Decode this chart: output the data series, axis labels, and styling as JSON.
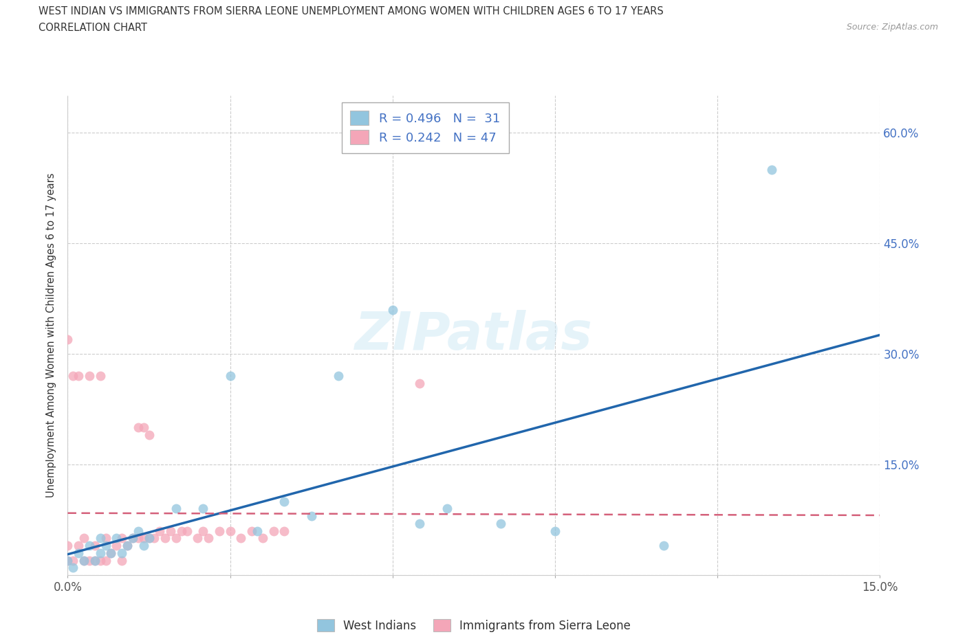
{
  "title_line1": "WEST INDIAN VS IMMIGRANTS FROM SIERRA LEONE UNEMPLOYMENT AMONG WOMEN WITH CHILDREN AGES 6 TO 17 YEARS",
  "title_line2": "CORRELATION CHART",
  "source_text": "Source: ZipAtlas.com",
  "ylabel": "Unemployment Among Women with Children Ages 6 to 17 years",
  "xlim": [
    0.0,
    0.15
  ],
  "ylim": [
    0.0,
    0.65
  ],
  "color_blue": "#92c5de",
  "color_pink": "#f4a6b8",
  "trendline_blue": "#2166ac",
  "trendline_pink": "#d4607a",
  "label_blue": "West Indians",
  "label_pink": "Immigrants from Sierra Leone",
  "R1": "0.496",
  "N1": "31",
  "R2": "0.242",
  "N2": "47",
  "wi_x": [
    0.0,
    0.001,
    0.002,
    0.003,
    0.004,
    0.005,
    0.006,
    0.006,
    0.007,
    0.008,
    0.009,
    0.01,
    0.011,
    0.012,
    0.013,
    0.014,
    0.015,
    0.02,
    0.025,
    0.03,
    0.035,
    0.04,
    0.045,
    0.05,
    0.06,
    0.065,
    0.07,
    0.08,
    0.09,
    0.11,
    0.13
  ],
  "wi_y": [
    0.02,
    0.01,
    0.03,
    0.02,
    0.04,
    0.02,
    0.03,
    0.05,
    0.04,
    0.03,
    0.05,
    0.03,
    0.04,
    0.05,
    0.06,
    0.04,
    0.05,
    0.09,
    0.09,
    0.27,
    0.06,
    0.1,
    0.08,
    0.27,
    0.36,
    0.07,
    0.09,
    0.07,
    0.06,
    0.04,
    0.55
  ],
  "sl_x": [
    0.0,
    0.0,
    0.0,
    0.001,
    0.001,
    0.002,
    0.002,
    0.003,
    0.003,
    0.004,
    0.004,
    0.005,
    0.005,
    0.006,
    0.006,
    0.007,
    0.007,
    0.008,
    0.009,
    0.01,
    0.01,
    0.011,
    0.012,
    0.013,
    0.013,
    0.014,
    0.014,
    0.015,
    0.015,
    0.016,
    0.017,
    0.018,
    0.019,
    0.02,
    0.021,
    0.022,
    0.024,
    0.025,
    0.026,
    0.028,
    0.03,
    0.032,
    0.034,
    0.036,
    0.038,
    0.04,
    0.065
  ],
  "sl_y": [
    0.02,
    0.04,
    0.32,
    0.02,
    0.27,
    0.04,
    0.27,
    0.02,
    0.05,
    0.02,
    0.27,
    0.02,
    0.04,
    0.02,
    0.27,
    0.02,
    0.05,
    0.03,
    0.04,
    0.02,
    0.05,
    0.04,
    0.05,
    0.05,
    0.2,
    0.05,
    0.2,
    0.05,
    0.19,
    0.05,
    0.06,
    0.05,
    0.06,
    0.05,
    0.06,
    0.06,
    0.05,
    0.06,
    0.05,
    0.06,
    0.06,
    0.05,
    0.06,
    0.05,
    0.06,
    0.06,
    0.26
  ]
}
